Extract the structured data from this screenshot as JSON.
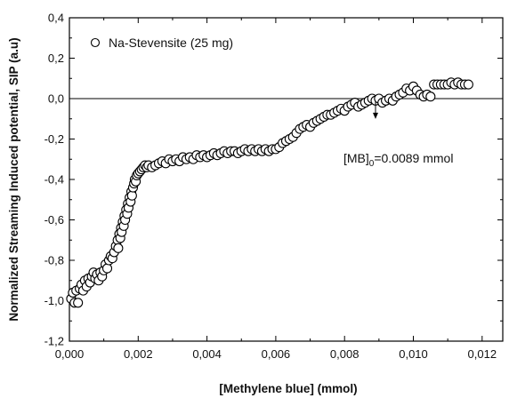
{
  "chart_data": {
    "type": "scatter",
    "title": "",
    "xlabel": "[Methylene blue] (mmol)",
    "ylabel": "Normalized Streaming Induced potential, SIP (a.u)",
    "xlim": [
      0.0,
      0.0126
    ],
    "ylim": [
      -1.2,
      0.4
    ],
    "x_ticks": [
      0.0,
      0.002,
      0.004,
      0.006,
      0.008,
      0.01,
      0.012
    ],
    "x_tick_labels": [
      "0,000",
      "0,002",
      "0,004",
      "0,006",
      "0,008",
      "0,010",
      "0,012"
    ],
    "y_ticks": [
      -1.2,
      -1.0,
      -0.8,
      -0.6,
      -0.4,
      -0.2,
      0.0,
      0.2,
      0.4
    ],
    "y_tick_labels": [
      "-1,2",
      "-1,0",
      "-0,8",
      "-0,6",
      "-0,4",
      "-0,2",
      "0,0",
      "0,2",
      "0,4"
    ],
    "grid": false,
    "legend_position": "top-left",
    "reference_line_y": 0.0,
    "series": [
      {
        "name": "Na-Stevensite (25 mg)",
        "marker": "open-circle",
        "color": "#000000",
        "points": [
          [
            5e-05,
            -0.99
          ],
          [
            0.0001,
            -0.96
          ],
          [
            0.00015,
            -1.01
          ],
          [
            0.0002,
            -0.95
          ],
          [
            0.00025,
            -1.01
          ],
          [
            0.0003,
            -0.94
          ],
          [
            0.00035,
            -0.92
          ],
          [
            0.0004,
            -0.95
          ],
          [
            0.00045,
            -0.9
          ],
          [
            0.0005,
            -0.93
          ],
          [
            0.00055,
            -0.89
          ],
          [
            0.0006,
            -0.91
          ],
          [
            0.00065,
            -0.88
          ],
          [
            0.0007,
            -0.86
          ],
          [
            0.00075,
            -0.89
          ],
          [
            0.0008,
            -0.87
          ],
          [
            0.00085,
            -0.9
          ],
          [
            0.0009,
            -0.86
          ],
          [
            0.00095,
            -0.88
          ],
          [
            0.001,
            -0.85
          ],
          [
            0.00105,
            -0.82
          ],
          [
            0.0011,
            -0.84
          ],
          [
            0.00115,
            -0.8
          ],
          [
            0.0012,
            -0.78
          ],
          [
            0.00125,
            -0.79
          ],
          [
            0.0013,
            -0.76
          ],
          [
            0.00135,
            -0.73
          ],
          [
            0.0014,
            -0.7
          ],
          [
            0.00142,
            -0.74
          ],
          [
            0.00145,
            -0.67
          ],
          [
            0.00148,
            -0.69
          ],
          [
            0.0015,
            -0.64
          ],
          [
            0.00152,
            -0.66
          ],
          [
            0.00155,
            -0.61
          ],
          [
            0.00158,
            -0.63
          ],
          [
            0.0016,
            -0.58
          ],
          [
            0.00162,
            -0.6
          ],
          [
            0.00165,
            -0.55
          ],
          [
            0.00168,
            -0.57
          ],
          [
            0.0017,
            -0.52
          ],
          [
            0.00172,
            -0.54
          ],
          [
            0.00175,
            -0.49
          ],
          [
            0.00178,
            -0.51
          ],
          [
            0.0018,
            -0.46
          ],
          [
            0.00182,
            -0.48
          ],
          [
            0.00185,
            -0.44
          ],
          [
            0.00188,
            -0.42
          ],
          [
            0.0019,
            -0.4
          ],
          [
            0.00193,
            -0.41
          ],
          [
            0.00196,
            -0.38
          ],
          [
            0.002,
            -0.37
          ],
          [
            0.00205,
            -0.36
          ],
          [
            0.0021,
            -0.35
          ],
          [
            0.00215,
            -0.34
          ],
          [
            0.0022,
            -0.33
          ],
          [
            0.00225,
            -0.34
          ],
          [
            0.0023,
            -0.33
          ],
          [
            0.0024,
            -0.34
          ],
          [
            0.0025,
            -0.33
          ],
          [
            0.0026,
            -0.32
          ],
          [
            0.0027,
            -0.31
          ],
          [
            0.0028,
            -0.32
          ],
          [
            0.0029,
            -0.3
          ],
          [
            0.003,
            -0.31
          ],
          [
            0.0031,
            -0.3
          ],
          [
            0.0032,
            -0.31
          ],
          [
            0.0033,
            -0.29
          ],
          [
            0.0034,
            -0.3
          ],
          [
            0.0035,
            -0.29
          ],
          [
            0.0036,
            -0.3
          ],
          [
            0.0037,
            -0.28
          ],
          [
            0.0038,
            -0.29
          ],
          [
            0.0039,
            -0.28
          ],
          [
            0.004,
            -0.29
          ],
          [
            0.0041,
            -0.28
          ],
          [
            0.0042,
            -0.27
          ],
          [
            0.0043,
            -0.28
          ],
          [
            0.0044,
            -0.27
          ],
          [
            0.0045,
            -0.26
          ],
          [
            0.0046,
            -0.27
          ],
          [
            0.0047,
            -0.26
          ],
          [
            0.0048,
            -0.26
          ],
          [
            0.0049,
            -0.27
          ],
          [
            0.005,
            -0.26
          ],
          [
            0.0051,
            -0.25
          ],
          [
            0.0052,
            -0.26
          ],
          [
            0.0053,
            -0.25
          ],
          [
            0.0054,
            -0.26
          ],
          [
            0.0055,
            -0.25
          ],
          [
            0.0056,
            -0.26
          ],
          [
            0.0057,
            -0.25
          ],
          [
            0.0058,
            -0.26
          ],
          [
            0.0059,
            -0.25
          ],
          [
            0.006,
            -0.25
          ],
          [
            0.0061,
            -0.24
          ],
          [
            0.0062,
            -0.22
          ],
          [
            0.0063,
            -0.21
          ],
          [
            0.0064,
            -0.2
          ],
          [
            0.0065,
            -0.19
          ],
          [
            0.0066,
            -0.17
          ],
          [
            0.0067,
            -0.15
          ],
          [
            0.0068,
            -0.14
          ],
          [
            0.0069,
            -0.13
          ],
          [
            0.007,
            -0.14
          ],
          [
            0.0071,
            -0.12
          ],
          [
            0.0072,
            -0.11
          ],
          [
            0.0073,
            -0.1
          ],
          [
            0.0074,
            -0.09
          ],
          [
            0.0075,
            -0.08
          ],
          [
            0.0076,
            -0.08
          ],
          [
            0.0077,
            -0.07
          ],
          [
            0.0078,
            -0.06
          ],
          [
            0.0079,
            -0.05
          ],
          [
            0.008,
            -0.06
          ],
          [
            0.0081,
            -0.04
          ],
          [
            0.0082,
            -0.03
          ],
          [
            0.0083,
            -0.02
          ],
          [
            0.0084,
            -0.04
          ],
          [
            0.0085,
            -0.03
          ],
          [
            0.0086,
            -0.02
          ],
          [
            0.0087,
            -0.01
          ],
          [
            0.0088,
            0.0
          ],
          [
            0.0089,
            -0.01
          ],
          [
            0.009,
            0.0
          ],
          [
            0.0091,
            -0.02
          ],
          [
            0.0092,
            -0.01
          ],
          [
            0.0093,
            0.0
          ],
          [
            0.0094,
            -0.01
          ],
          [
            0.0095,
            0.01
          ],
          [
            0.0096,
            0.02
          ],
          [
            0.0097,
            0.03
          ],
          [
            0.0098,
            0.05
          ],
          [
            0.0099,
            0.04
          ],
          [
            0.01,
            0.06
          ],
          [
            0.0101,
            0.04
          ],
          [
            0.0102,
            0.02
          ],
          [
            0.0103,
            0.01
          ],
          [
            0.0104,
            0.02
          ],
          [
            0.0105,
            0.01
          ],
          [
            0.0106,
            0.07
          ],
          [
            0.0107,
            0.07
          ],
          [
            0.0108,
            0.07
          ],
          [
            0.0109,
            0.07
          ],
          [
            0.011,
            0.07
          ],
          [
            0.0111,
            0.08
          ],
          [
            0.0112,
            0.07
          ],
          [
            0.0113,
            0.08
          ],
          [
            0.0114,
            0.07
          ],
          [
            0.0115,
            0.07
          ],
          [
            0.0116,
            0.07
          ]
        ]
      }
    ],
    "annotation": {
      "text_main": "[MB]",
      "text_sub": "0",
      "text_value": "=0.0089 mmol",
      "arrow_x": 0.0089,
      "arrow_y_from": 0.0,
      "arrow_y_to": -0.07
    }
  }
}
